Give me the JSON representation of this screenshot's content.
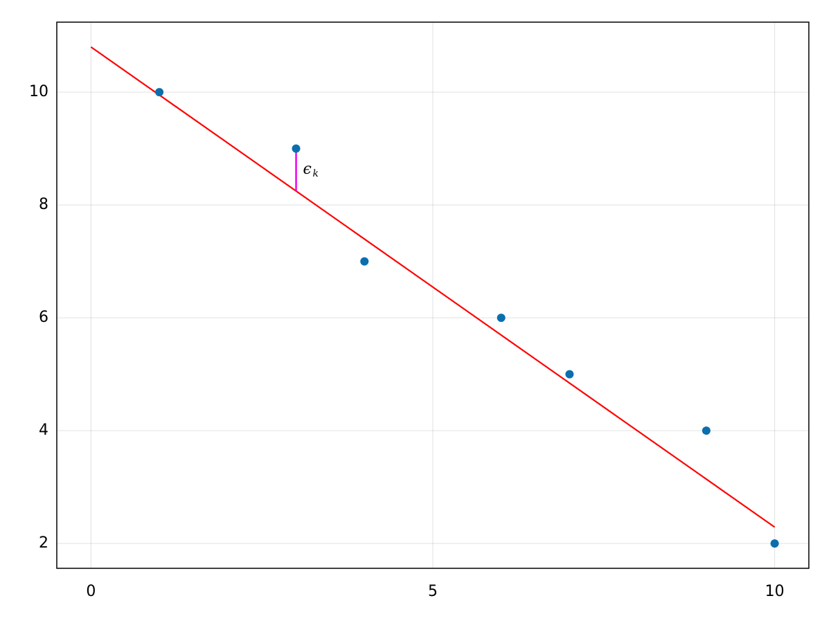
{
  "chart_data": {
    "type": "scatter",
    "xlim": [
      -0.5,
      10.5
    ],
    "xticks": [
      0,
      5,
      10
    ],
    "ylim": [
      1.56,
      11.24
    ],
    "yticks": [
      2,
      4,
      6,
      8,
      10
    ],
    "grid": true,
    "series": [
      {
        "type": "scatter",
        "color": "#0b6fae",
        "x": [
          1,
          3,
          4,
          6,
          7,
          9,
          10
        ],
        "values": [
          10,
          9,
          7,
          6,
          5,
          4,
          2
        ]
      },
      {
        "type": "line",
        "color": "#ff0000",
        "x": [
          0,
          10
        ],
        "values": [
          10.8,
          2.29
        ]
      },
      {
        "type": "segment",
        "color": "#ee00ee",
        "x": [
          3,
          3
        ],
        "values": [
          8.25,
          9
        ],
        "label": "ϵ",
        "label_sub": "k"
      }
    ]
  }
}
